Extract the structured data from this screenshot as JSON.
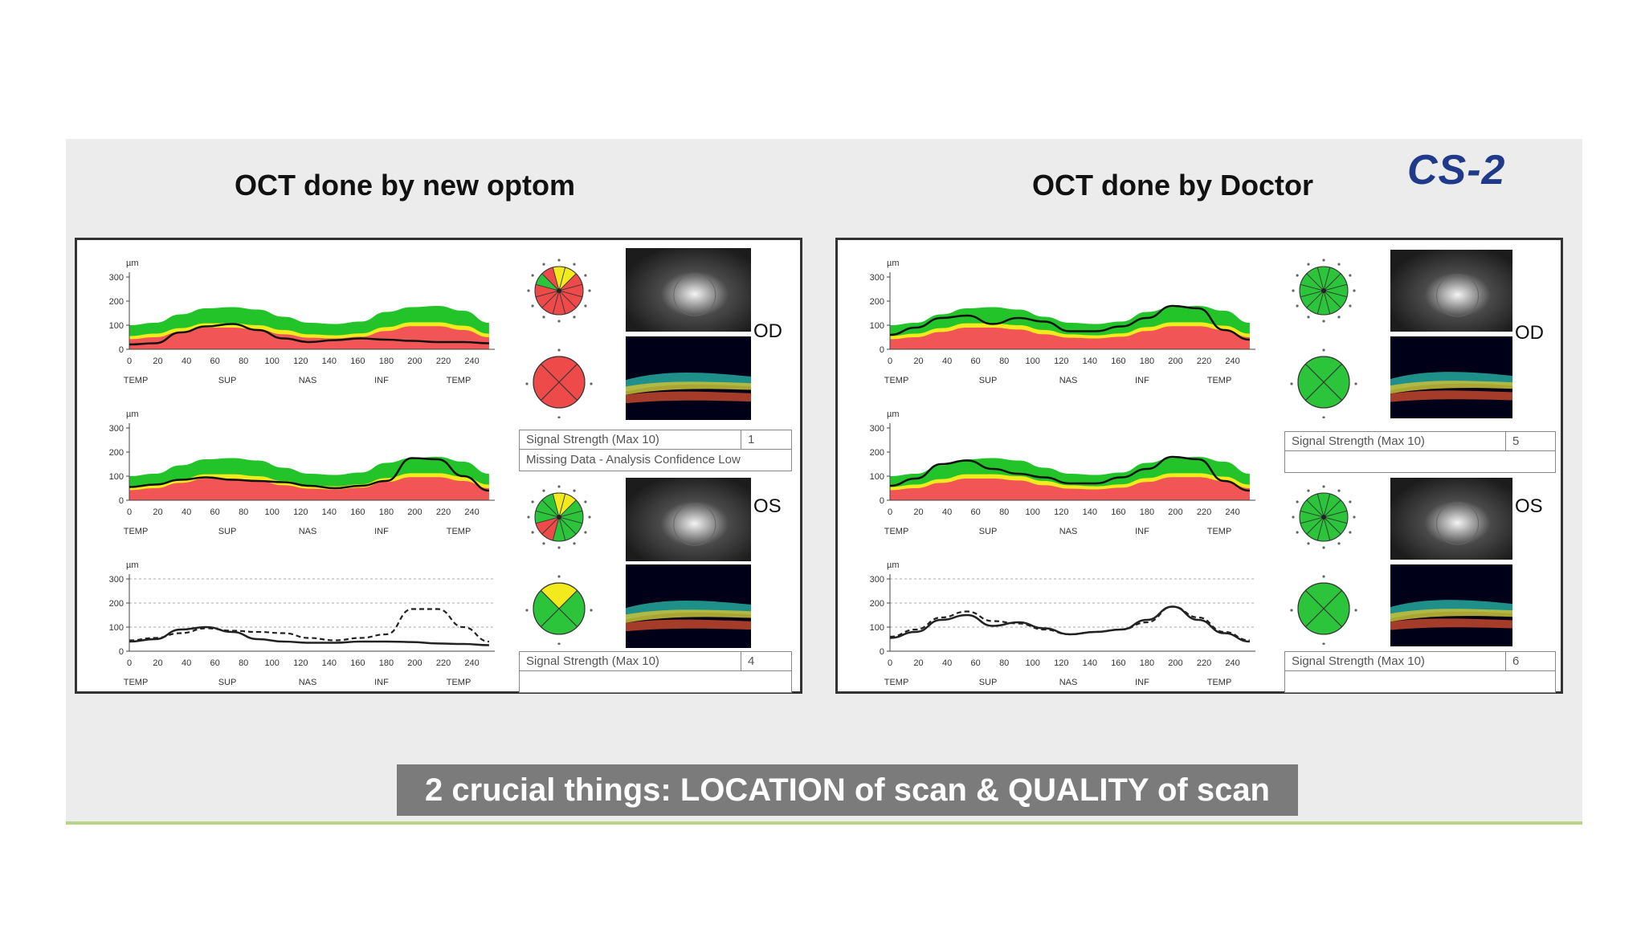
{
  "slide": {
    "case_label": "CS-2",
    "caption": "2 crucial things: LOCATION of  scan & QUALITY of scan"
  },
  "panels": [
    {
      "title": "OCT done by new optom",
      "eye_labels": [
        "OD",
        "OS"
      ],
      "od_signal": {
        "label": "Signal Strength (Max 10)",
        "value": "1",
        "note": "Missing Data - Analysis Confidence Low"
      },
      "os_signal": {
        "label": "Signal Strength (Max 10)",
        "value": "4",
        "note": ""
      }
    },
    {
      "title": "OCT done by Doctor",
      "eye_labels": [
        "OD",
        "OS"
      ],
      "od_signal": {
        "label": "Signal Strength (Max 10)",
        "value": "5",
        "note": ""
      },
      "os_signal": {
        "label": "Signal Strength (Max 10)",
        "value": "6",
        "note": ""
      }
    }
  ],
  "chart_data": {
    "type": "line",
    "unit": "µm",
    "x_ticks": [
      0,
      20,
      40,
      60,
      80,
      100,
      120,
      140,
      160,
      180,
      200,
      220,
      240
    ],
    "y_ticks": [
      0,
      100,
      200,
      300
    ],
    "region_labels": [
      "TEMP",
      "SUP",
      "NAS",
      "INF",
      "TEMP"
    ],
    "normative_bands": {
      "green_top": [
        100,
        110,
        145,
        170,
        175,
        165,
        135,
        110,
        105,
        115,
        155,
        175,
        180,
        160,
        110
      ],
      "yellow_top": [
        55,
        65,
        88,
        108,
        108,
        100,
        80,
        62,
        58,
        66,
        92,
        112,
        112,
        98,
        65
      ],
      "red_top": [
        42,
        50,
        72,
        90,
        90,
        82,
        62,
        48,
        45,
        52,
        76,
        96,
        96,
        80,
        50
      ]
    },
    "x": [
      0,
      18,
      36,
      54,
      72,
      90,
      108,
      126,
      144,
      162,
      180,
      198,
      216,
      234,
      252
    ],
    "charts": [
      {
        "panel": 0,
        "eye": "OD",
        "values": [
          20,
          25,
          70,
          95,
          105,
          80,
          45,
          30,
          38,
          45,
          40,
          35,
          30,
          30,
          25
        ]
      },
      {
        "panel": 0,
        "eye": "OS",
        "values": [
          55,
          65,
          85,
          95,
          85,
          80,
          75,
          60,
          50,
          60,
          80,
          175,
          170,
          100,
          40
        ]
      },
      {
        "panel": 0,
        "eye": "OU",
        "solid": [
          40,
          50,
          90,
          100,
          80,
          50,
          40,
          35,
          35,
          40,
          40,
          38,
          32,
          30,
          25
        ],
        "dashed": [
          45,
          55,
          75,
          95,
          85,
          80,
          75,
          55,
          45,
          55,
          70,
          175,
          175,
          100,
          40
        ]
      },
      {
        "panel": 1,
        "eye": "OD",
        "values": [
          60,
          90,
          130,
          140,
          105,
          130,
          115,
          75,
          75,
          95,
          130,
          180,
          170,
          80,
          40
        ]
      },
      {
        "panel": 1,
        "eye": "OS",
        "values": [
          60,
          90,
          150,
          165,
          130,
          110,
          95,
          70,
          70,
          95,
          130,
          180,
          170,
          80,
          40
        ]
      },
      {
        "panel": 1,
        "eye": "OU",
        "solid": [
          55,
          80,
          130,
          150,
          105,
          120,
          95,
          70,
          80,
          90,
          130,
          185,
          130,
          75,
          40
        ],
        "dashed": [
          60,
          90,
          140,
          165,
          125,
          115,
          90,
          70,
          80,
          90,
          120,
          185,
          140,
          80,
          45
        ]
      }
    ]
  }
}
